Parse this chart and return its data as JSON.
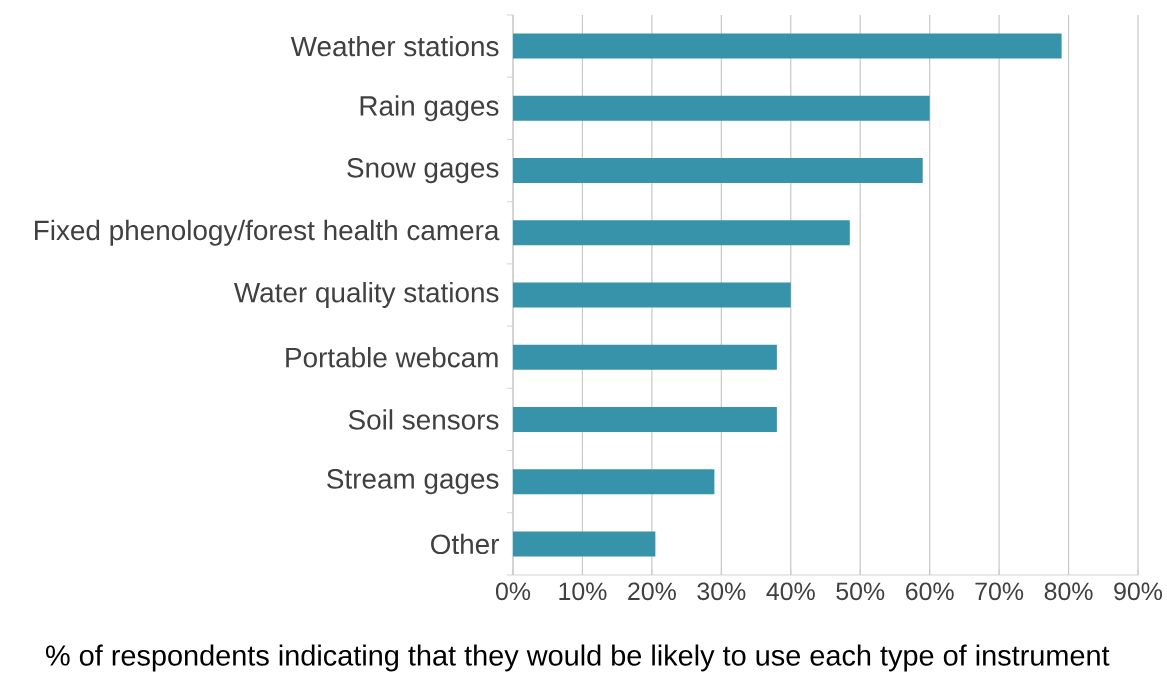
{
  "chart_data": {
    "type": "bar",
    "orientation": "horizontal",
    "categories": [
      "Weather stations",
      "Rain gages",
      "Snow gages",
      "Fixed phenology/forest health camera",
      "Water quality stations",
      "Portable webcam",
      "Soil sensors",
      "Stream gages",
      "Other"
    ],
    "values": [
      79,
      60,
      59,
      48.5,
      40,
      38,
      38,
      29,
      20.5
    ],
    "color": "#3793aa",
    "xlabel": "% of respondents indicating that they would be likely to use each type of instrument",
    "xlim": [
      0,
      90
    ],
    "xticks": [
      {
        "value": 0,
        "label": "0%"
      },
      {
        "value": 10,
        "label": "10%"
      },
      {
        "value": 20,
        "label": "20%"
      },
      {
        "value": 30,
        "label": "30%"
      },
      {
        "value": 40,
        "label": "40%"
      },
      {
        "value": 50,
        "label": "50%"
      },
      {
        "value": 60,
        "label": "60%"
      },
      {
        "value": 70,
        "label": "70%"
      },
      {
        "value": 80,
        "label": "80%"
      },
      {
        "value": 90,
        "label": "90%"
      }
    ],
    "grid": "x"
  }
}
